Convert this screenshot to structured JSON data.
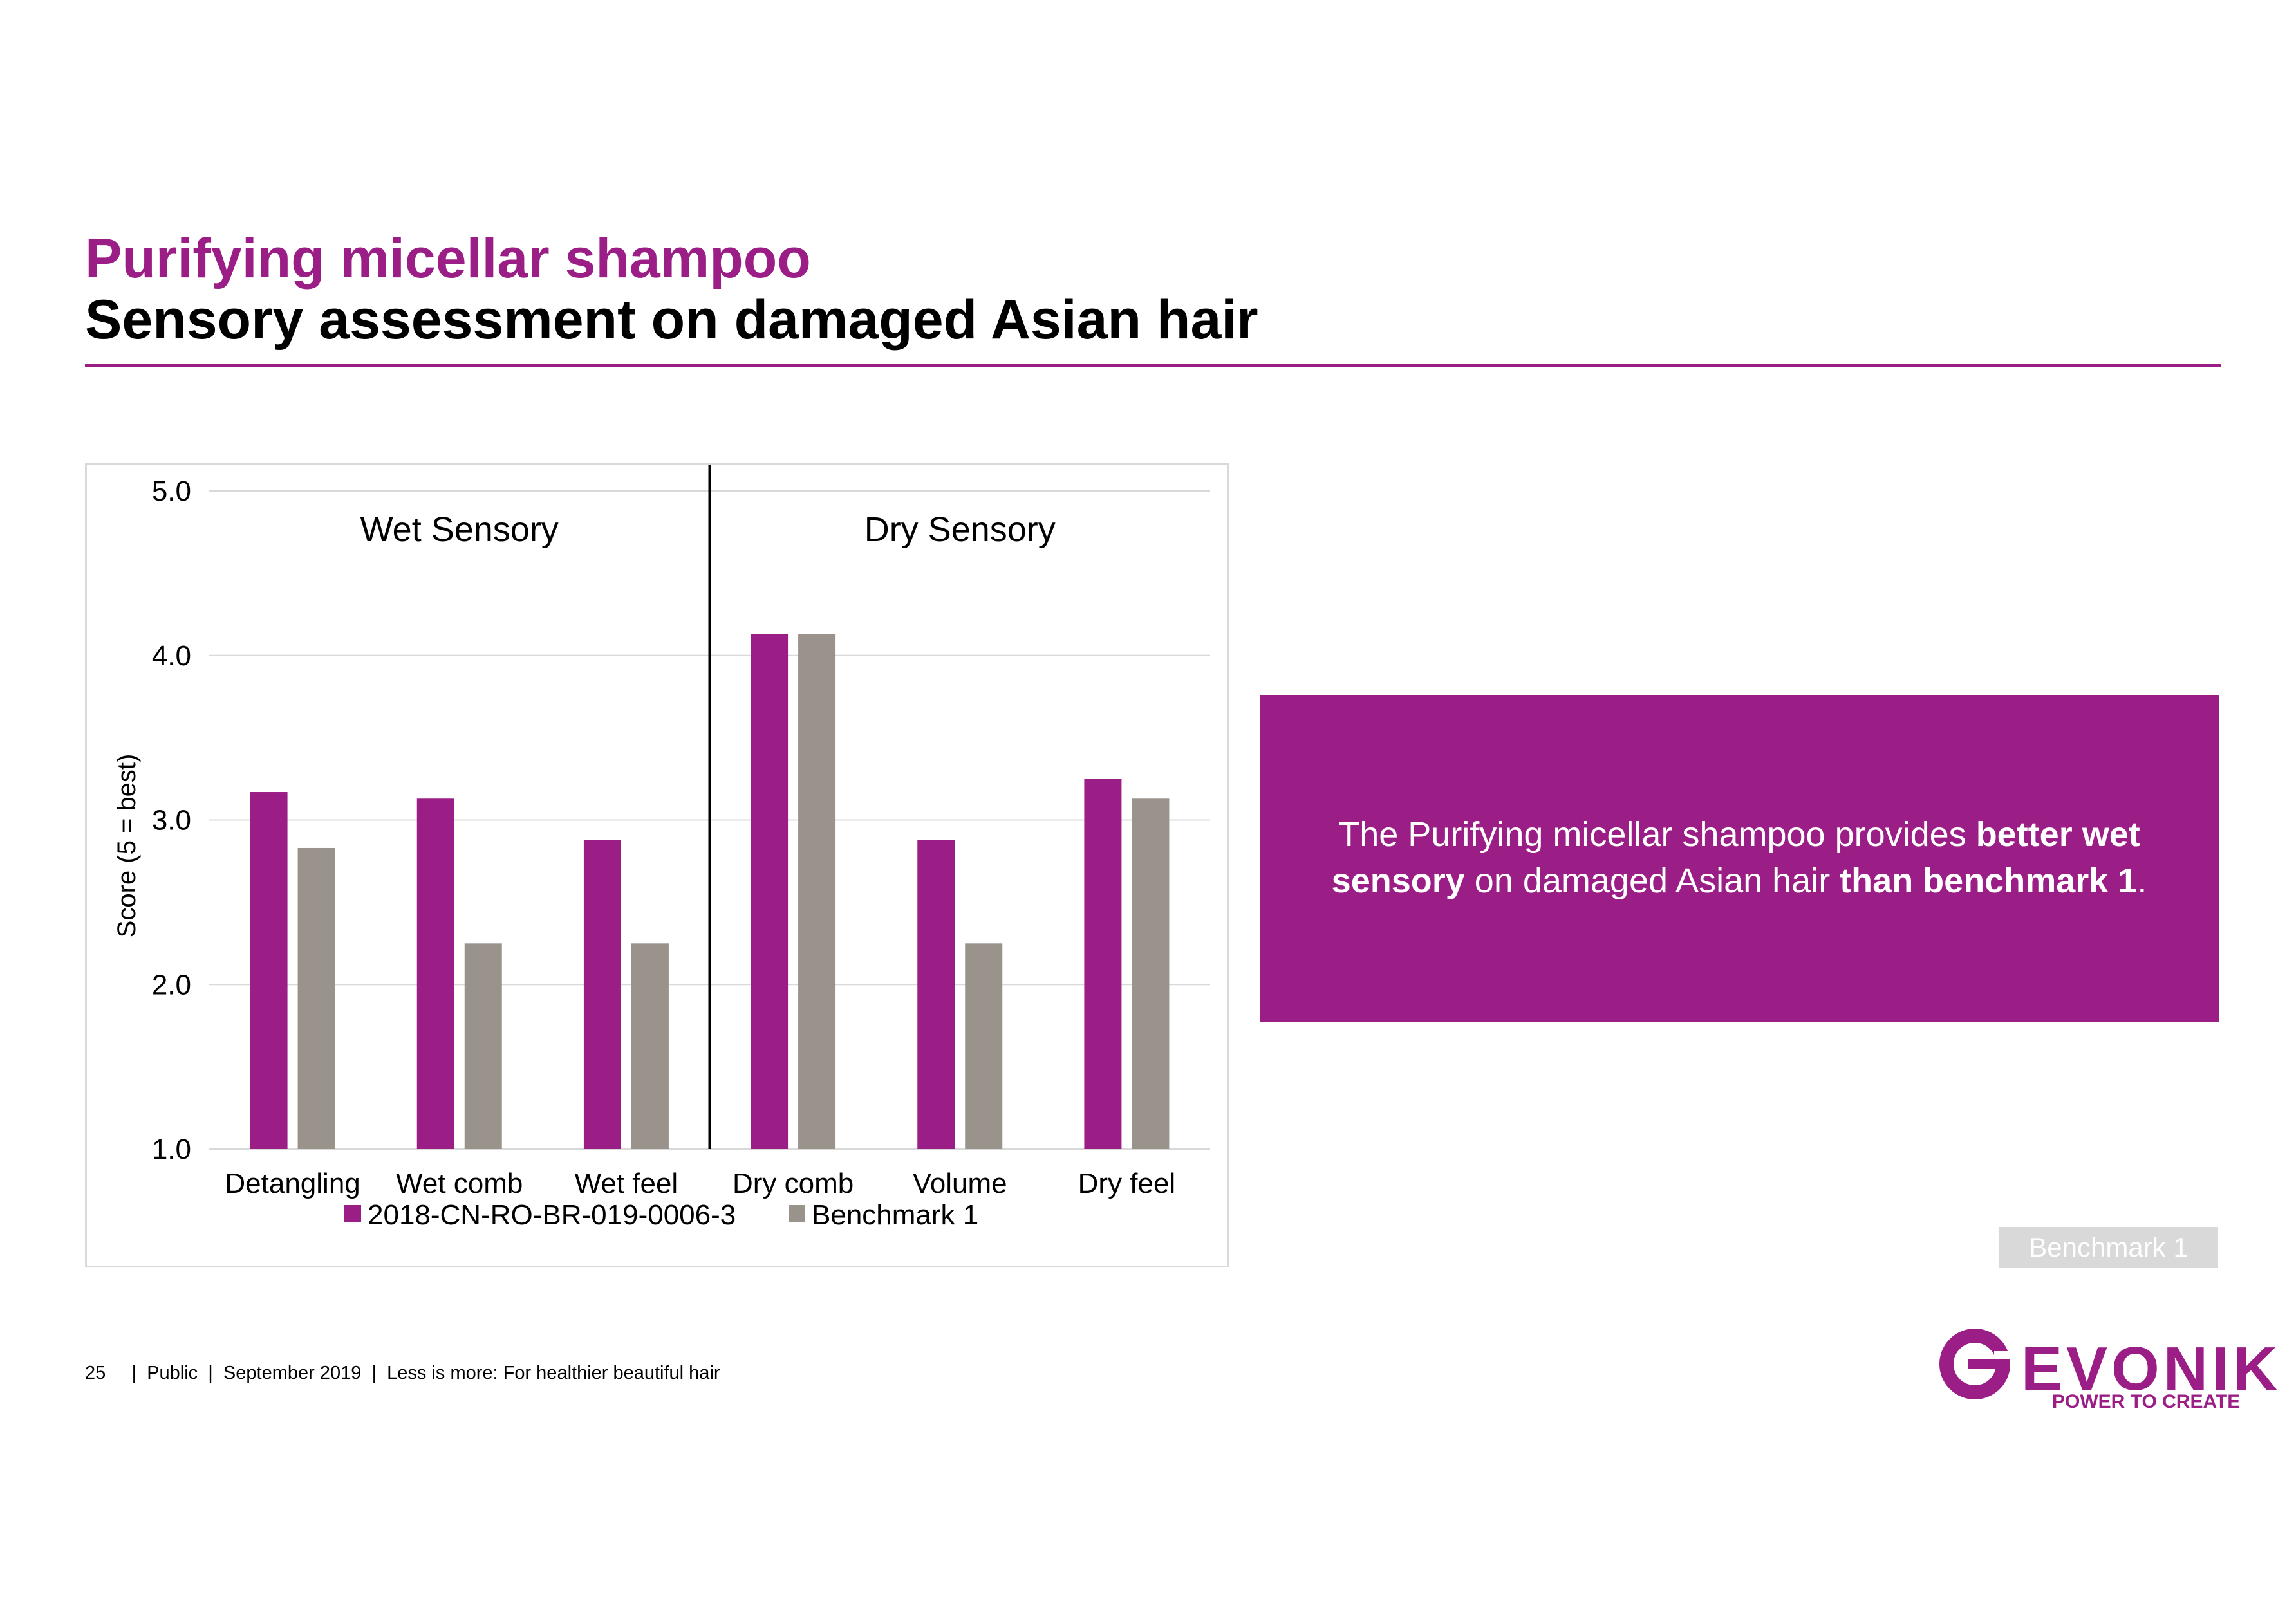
{
  "slide": {
    "title": "Purifying micellar shampoo",
    "subtitle": "Sensory assessment on damaged Asian hair",
    "callout_segments": [
      {
        "text": "The Purifying micellar shampoo provides ",
        "bold": false
      },
      {
        "text": "better wet sensory",
        "bold": true
      },
      {
        "text": " on damaged Asian hair ",
        "bold": false
      },
      {
        "text": "than benchmark 1",
        "bold": true
      },
      {
        "text": ".",
        "bold": false
      }
    ],
    "benchmark_tag": "Benchmark 1",
    "footer": "25     |  Public  |  September 2019  |  Less is more: For healthier beautiful hair",
    "logo_text": "EVONIK",
    "logo_tagline": "POWER TO CREATE"
  },
  "colors": {
    "brand": "#9b1e86",
    "benchmark": "#9a938c",
    "gridline": "#d9d9d9",
    "divider": "#000000"
  },
  "chart_data": {
    "type": "bar",
    "title": "",
    "xlabel": "",
    "ylabel": "Score (5 = best)",
    "ylim": [
      1.0,
      5.0
    ],
    "yticks": [
      "1.0",
      "2.0",
      "3.0",
      "4.0",
      "5.0"
    ],
    "categories": [
      "Detangling",
      "Wet comb",
      "Wet feel",
      "Dry comb",
      "Volume",
      "Dry feel"
    ],
    "series": [
      {
        "name": "2018-CN-RO-BR-019-0006-3",
        "values": [
          3.17,
          3.13,
          2.88,
          4.13,
          2.88,
          3.25
        ]
      },
      {
        "name": "Benchmark 1",
        "values": [
          2.83,
          2.25,
          2.25,
          4.13,
          2.25,
          3.13
        ]
      }
    ],
    "groups": [
      {
        "label": "Wet Sensory",
        "categories": [
          0,
          1,
          2
        ]
      },
      {
        "label": "Dry Sensory",
        "categories": [
          3,
          4,
          5
        ]
      }
    ],
    "grid": true,
    "legend": "bottom"
  }
}
